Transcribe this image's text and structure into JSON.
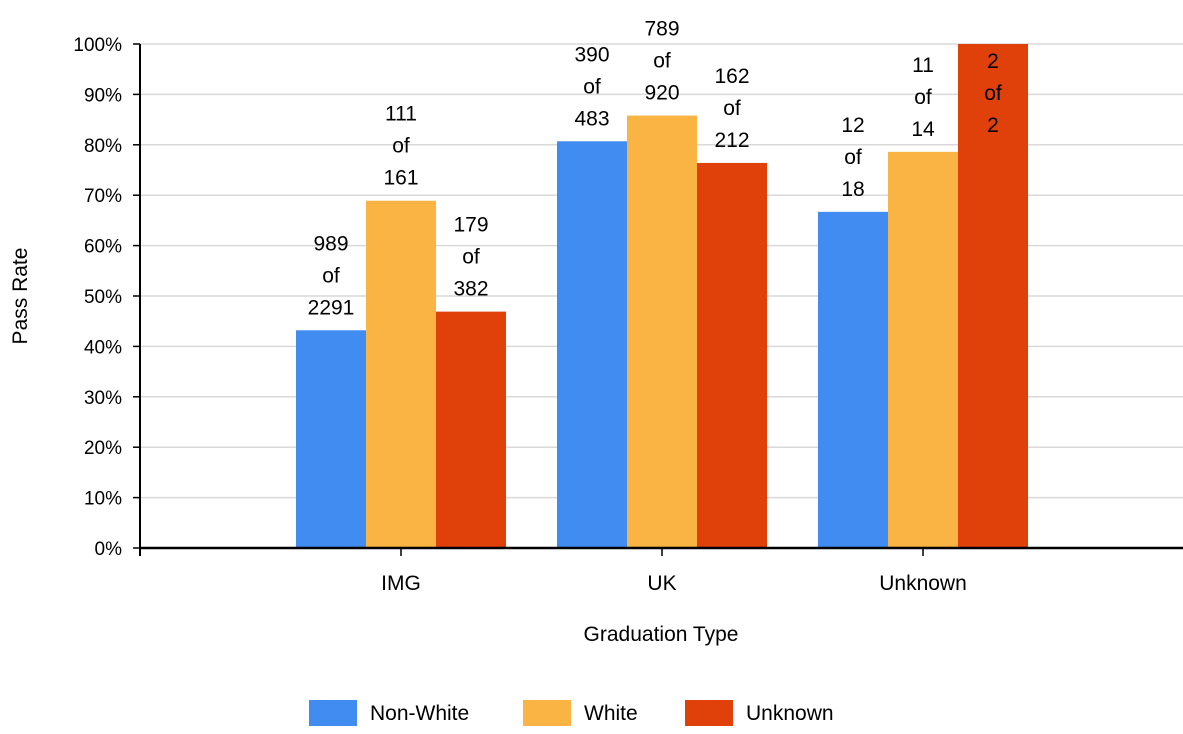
{
  "chart_data": {
    "type": "bar",
    "title": "",
    "xlabel": "Graduation Type",
    "ylabel": "Pass Rate",
    "ylim": [
      0,
      100
    ],
    "yticks": [
      "0%",
      "10%",
      "20%",
      "30%",
      "40%",
      "50%",
      "60%",
      "70%",
      "80%",
      "90%",
      "100%"
    ],
    "categories": [
      "IMG",
      "UK",
      "Unknown"
    ],
    "grid": true,
    "legend_position": "bottom",
    "series": [
      {
        "name": "Non-White",
        "color": "#418cf0",
        "values": [
          43.2,
          80.7,
          66.7
        ],
        "labels": [
          [
            "989",
            "of",
            "2291"
          ],
          [
            "390",
            "of",
            "483"
          ],
          [
            "12",
            "of",
            "18"
          ]
        ]
      },
      {
        "name": "White",
        "color": "#fab444",
        "values": [
          68.9,
          85.8,
          78.6
        ],
        "labels": [
          [
            "111",
            "of",
            "161"
          ],
          [
            "789",
            "of",
            "920"
          ],
          [
            "11",
            "of",
            "14"
          ]
        ]
      },
      {
        "name": "Unknown",
        "color": "#e0400a",
        "values": [
          46.9,
          76.4,
          100
        ],
        "labels": [
          [
            "179",
            "of",
            "382"
          ],
          [
            "162",
            "of",
            "212"
          ],
          [
            "2",
            "of",
            "2"
          ]
        ]
      }
    ]
  }
}
